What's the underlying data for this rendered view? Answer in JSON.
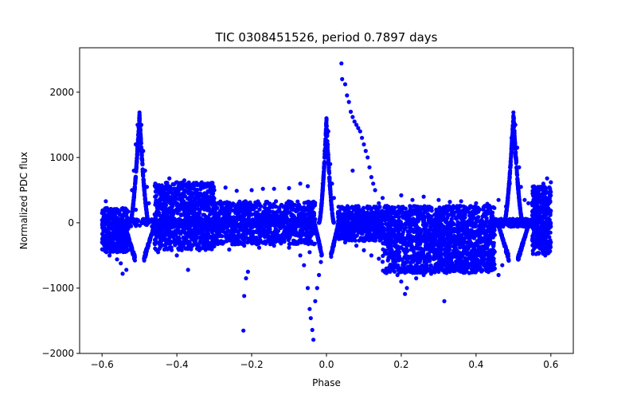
{
  "chart_data": {
    "type": "scatter",
    "title": "TIC 0308451526, period 0.7897 days",
    "xlabel": "Phase",
    "ylabel": "Normalized PDC flux",
    "xlim": [
      -0.66,
      0.66
    ],
    "ylim": [
      -2000,
      2680
    ],
    "x_ticks": [
      -0.6,
      -0.4,
      -0.2,
      0.0,
      0.2,
      0.4,
      0.6
    ],
    "x_tick_labels": [
      "−0.6",
      "−0.4",
      "−0.2",
      "0.0",
      "0.2",
      "0.4",
      "0.6"
    ],
    "y_ticks": [
      -2000,
      -1000,
      0,
      1000,
      2000
    ],
    "y_tick_labels": [
      "−2000",
      "−1000",
      "0",
      "1000",
      "2000"
    ],
    "grid": false,
    "marker_color": "#0000ff",
    "series": [
      {
        "points": [
          [
            -0.6,
            150
          ],
          [
            -0.6,
            -300
          ],
          [
            -0.59,
            330
          ],
          [
            -0.58,
            -500
          ],
          [
            -0.56,
            -560
          ],
          [
            -0.55,
            -620
          ],
          [
            -0.545,
            -780
          ],
          [
            -0.535,
            -720
          ],
          [
            -0.52,
            -400
          ],
          [
            -0.51,
            200
          ],
          [
            -0.505,
            1500
          ],
          [
            -0.5,
            1690
          ],
          [
            -0.495,
            1500
          ],
          [
            -0.49,
            1100
          ],
          [
            -0.485,
            800
          ],
          [
            -0.48,
            550
          ],
          [
            -0.475,
            300
          ],
          [
            -0.51,
            1200
          ],
          [
            -0.515,
            800
          ],
          [
            -0.52,
            500
          ],
          [
            -0.45,
            560
          ],
          [
            -0.42,
            680
          ],
          [
            -0.4,
            620
          ],
          [
            -0.38,
            650
          ],
          [
            -0.36,
            580
          ],
          [
            -0.33,
            560
          ],
          [
            -0.3,
            500
          ],
          [
            -0.27,
            540
          ],
          [
            -0.24,
            490
          ],
          [
            -0.2,
            500
          ],
          [
            -0.17,
            520
          ],
          [
            -0.14,
            520
          ],
          [
            -0.1,
            530
          ],
          [
            -0.07,
            600
          ],
          [
            -0.05,
            560
          ],
          [
            -0.45,
            -450
          ],
          [
            -0.42,
            -380
          ],
          [
            -0.4,
            -500
          ],
          [
            -0.37,
            -720
          ],
          [
            -0.34,
            -420
          ],
          [
            -0.3,
            -360
          ],
          [
            -0.26,
            -410
          ],
          [
            -0.22,
            -350
          ],
          [
            -0.18,
            -380
          ],
          [
            -0.14,
            -350
          ],
          [
            -0.1,
            -380
          ],
          [
            -0.07,
            -500
          ],
          [
            -0.06,
            -650
          ],
          [
            -0.045,
            -450
          ],
          [
            -0.222,
            -1650
          ],
          [
            -0.22,
            -1120
          ],
          [
            -0.215,
            -850
          ],
          [
            -0.21,
            -750
          ],
          [
            -0.05,
            -1000
          ],
          [
            -0.045,
            -1320
          ],
          [
            -0.042,
            -1460
          ],
          [
            -0.038,
            -1640
          ],
          [
            -0.035,
            -1790
          ],
          [
            -0.03,
            -1200
          ],
          [
            -0.025,
            -1000
          ],
          [
            -0.02,
            -800
          ],
          [
            -0.015,
            -600
          ],
          [
            -0.01,
            600
          ],
          [
            -0.005,
            1100
          ],
          [
            0.0,
            1600
          ],
          [
            0.005,
            1400
          ],
          [
            0.01,
            900
          ],
          [
            0.015,
            600
          ],
          [
            0.02,
            380
          ],
          [
            0.04,
            2440
          ],
          [
            0.042,
            2200
          ],
          [
            0.05,
            2120
          ],
          [
            0.055,
            1950
          ],
          [
            0.06,
            1850
          ],
          [
            0.065,
            1700
          ],
          [
            0.07,
            1620
          ],
          [
            0.075,
            1550
          ],
          [
            0.08,
            1500
          ],
          [
            0.085,
            1450
          ],
          [
            0.09,
            1400
          ],
          [
            0.095,
            1300
          ],
          [
            0.1,
            1200
          ],
          [
            0.105,
            1100
          ],
          [
            0.11,
            1000
          ],
          [
            0.115,
            850
          ],
          [
            0.12,
            700
          ],
          [
            0.125,
            600
          ],
          [
            0.13,
            500
          ],
          [
            0.14,
            300
          ],
          [
            0.07,
            800
          ],
          [
            0.02,
            -350
          ],
          [
            0.05,
            -300
          ],
          [
            0.08,
            -350
          ],
          [
            0.1,
            -420
          ],
          [
            0.12,
            -500
          ],
          [
            0.14,
            -550
          ],
          [
            0.16,
            -700
          ],
          [
            0.19,
            -800
          ],
          [
            0.2,
            -900
          ],
          [
            0.21,
            -1090
          ],
          [
            0.215,
            -1000
          ],
          [
            0.24,
            -850
          ],
          [
            0.26,
            -800
          ],
          [
            0.28,
            -780
          ],
          [
            0.3,
            -750
          ],
          [
            0.315,
            -1200
          ],
          [
            0.33,
            -720
          ],
          [
            0.36,
            -700
          ],
          [
            0.38,
            -650
          ],
          [
            0.4,
            -600
          ],
          [
            0.43,
            -560
          ],
          [
            0.45,
            -700
          ],
          [
            0.46,
            -800
          ],
          [
            0.47,
            -650
          ],
          [
            0.48,
            -450
          ],
          [
            0.15,
            380
          ],
          [
            0.2,
            420
          ],
          [
            0.23,
            350
          ],
          [
            0.26,
            400
          ],
          [
            0.3,
            350
          ],
          [
            0.33,
            320
          ],
          [
            0.36,
            330
          ],
          [
            0.4,
            300
          ],
          [
            0.43,
            290
          ],
          [
            0.46,
            350
          ],
          [
            0.48,
            250
          ],
          [
            0.49,
            600
          ],
          [
            0.495,
            1300
          ],
          [
            0.5,
            1690
          ],
          [
            0.505,
            1500
          ],
          [
            0.51,
            1150
          ],
          [
            0.515,
            850
          ],
          [
            0.52,
            550
          ],
          [
            0.53,
            350
          ],
          [
            0.54,
            300
          ],
          [
            0.56,
            300
          ],
          [
            0.57,
            550
          ],
          [
            0.58,
            600
          ],
          [
            0.59,
            680
          ],
          [
            0.6,
            620
          ],
          [
            0.6,
            -300
          ],
          [
            0.585,
            -500
          ]
        ],
        "bands": [
          {
            "x": [
              -0.6,
              -0.53
            ],
            "y": [
              -450,
              230
            ],
            "n": 380
          },
          {
            "x": [
              -0.46,
              -0.3
            ],
            "y": [
              -420,
              620
            ],
            "n": 900
          },
          {
            "x": [
              -0.3,
              -0.03
            ],
            "y": [
              -330,
              330
            ],
            "n": 900
          },
          {
            "x": [
              -0.53,
              -0.03
            ],
            "y": [
              -60,
              60
            ],
            "n": 500
          },
          {
            "x": [
              0.03,
              0.15
            ],
            "y": [
              -280,
              150
            ],
            "n": 350
          },
          {
            "x": [
              0.15,
              0.45
            ],
            "y": [
              -770,
              -100
            ],
            "n": 1100
          },
          {
            "x": [
              0.03,
              0.45
            ],
            "y": [
              -120,
              260
            ],
            "n": 800
          },
          {
            "x": [
              0.55,
              0.6
            ],
            "y": [
              -480,
              560
            ],
            "n": 420
          },
          {
            "x": [
              0.45,
              0.55
            ],
            "y": [
              -60,
              60
            ],
            "n": 200
          }
        ],
        "peaks": [
          {
            "center": -0.5,
            "halfwidth": 0.025,
            "peak": 1690,
            "base": 0,
            "n": 380
          },
          {
            "center": 0.5,
            "halfwidth": 0.025,
            "peak": 1690,
            "base": 0,
            "n": 380
          },
          {
            "center": 0.0,
            "halfwidth": 0.02,
            "peak": 1620,
            "base": 0,
            "n": 300
          }
        ],
        "dips": [
          {
            "center": -0.5,
            "halfwidth": 0.03,
            "depth": -600,
            "n": 200
          },
          {
            "center": 0.5,
            "halfwidth": 0.03,
            "depth": -600,
            "n": 200
          },
          {
            "center": 0.0,
            "halfwidth": 0.02,
            "depth": -550,
            "n": 150
          }
        ]
      }
    ]
  }
}
